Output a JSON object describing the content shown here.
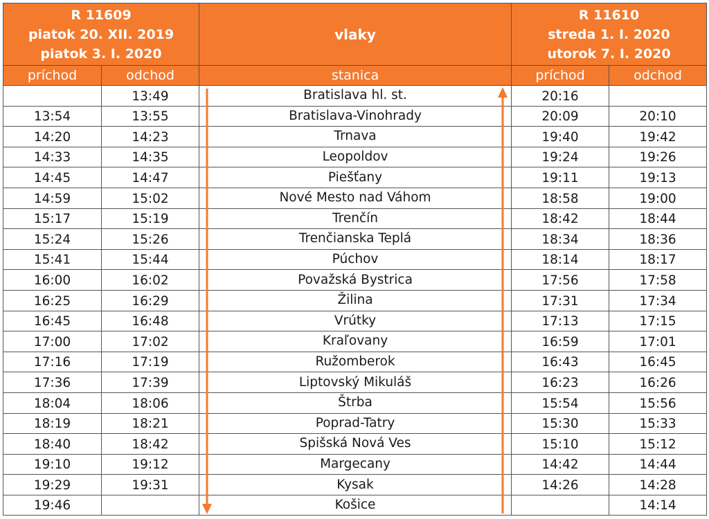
{
  "header": {
    "left_train": {
      "line1": "R 11609",
      "line2": "piatok 20. XII. 2019",
      "line3": "piatok 3. I. 2020"
    },
    "middle_title": "vlaky",
    "right_train": {
      "line1": "R 11610",
      "line2": "streda 1. I. 2020",
      "line3": "utorok 7. I. 2020"
    },
    "sub": {
      "arrival_left": "príchod",
      "departure_left": "odchod",
      "station": "stanica",
      "arrival_right": "príchod",
      "departure_right": "odchod"
    }
  },
  "colors": {
    "accent": "#f47a2e",
    "header_text": "#ffffff",
    "border": "#555555"
  },
  "rows": [
    {
      "arr1": "",
      "dep1": "13:49",
      "station": "Bratislava hl. st.",
      "arr2": "20:16",
      "dep2": ""
    },
    {
      "arr1": "13:54",
      "dep1": "13:55",
      "station": "Bratislava-Vinohrady",
      "arr2": "20:09",
      "dep2": "20:10"
    },
    {
      "arr1": "14:20",
      "dep1": "14:23",
      "station": "Trnava",
      "arr2": "19:40",
      "dep2": "19:42"
    },
    {
      "arr1": "14:33",
      "dep1": "14:35",
      "station": "Leopoldov",
      "arr2": "19:24",
      "dep2": "19:26"
    },
    {
      "arr1": "14:45",
      "dep1": "14:47",
      "station": "Piešťany",
      "arr2": "19:11",
      "dep2": "19:13"
    },
    {
      "arr1": "14:59",
      "dep1": "15:02",
      "station": "Nové Mesto nad Váhom",
      "arr2": "18:58",
      "dep2": "19:00"
    },
    {
      "arr1": "15:17",
      "dep1": "15:19",
      "station": "Trenčín",
      "arr2": "18:42",
      "dep2": "18:44"
    },
    {
      "arr1": "15:24",
      "dep1": "15:26",
      "station": "Trenčianska Teplá",
      "arr2": "18:34",
      "dep2": "18:36"
    },
    {
      "arr1": "15:41",
      "dep1": "15:44",
      "station": "Púchov",
      "arr2": "18:14",
      "dep2": "18:17"
    },
    {
      "arr1": "16:00",
      "dep1": "16:02",
      "station": "Považská Bystrica",
      "arr2": "17:56",
      "dep2": "17:58"
    },
    {
      "arr1": "16:25",
      "dep1": "16:29",
      "station": "Žilina",
      "arr2": "17:31",
      "dep2": "17:34"
    },
    {
      "arr1": "16:45",
      "dep1": "16:48",
      "station": "Vrútky",
      "arr2": "17:13",
      "dep2": "17:15"
    },
    {
      "arr1": "17:00",
      "dep1": "17:02",
      "station": "Kraľovany",
      "arr2": "16:59",
      "dep2": "17:01"
    },
    {
      "arr1": "17:16",
      "dep1": "17:19",
      "station": "Ružomberok",
      "arr2": "16:43",
      "dep2": "16:45"
    },
    {
      "arr1": "17:36",
      "dep1": "17:39",
      "station": "Liptovský Mikuláš",
      "arr2": "16:23",
      "dep2": "16:26"
    },
    {
      "arr1": "18:04",
      "dep1": "18:06",
      "station": "Štrba",
      "arr2": "15:54",
      "dep2": "15:56"
    },
    {
      "arr1": "18:19",
      "dep1": "18:21",
      "station": "Poprad-Tatry",
      "arr2": "15:30",
      "dep2": "15:33"
    },
    {
      "arr1": "18:40",
      "dep1": "18:42",
      "station": "Spišská Nová Ves",
      "arr2": "15:10",
      "dep2": "15:12"
    },
    {
      "arr1": "19:10",
      "dep1": "19:12",
      "station": "Margecany",
      "arr2": "14:42",
      "dep2": "14:44"
    },
    {
      "arr1": "19:29",
      "dep1": "19:31",
      "station": "Kysak",
      "arr2": "14:26",
      "dep2": "14:28"
    },
    {
      "arr1": "19:46",
      "dep1": "",
      "station": "Košice",
      "arr2": "",
      "dep2": "14:14"
    }
  ]
}
